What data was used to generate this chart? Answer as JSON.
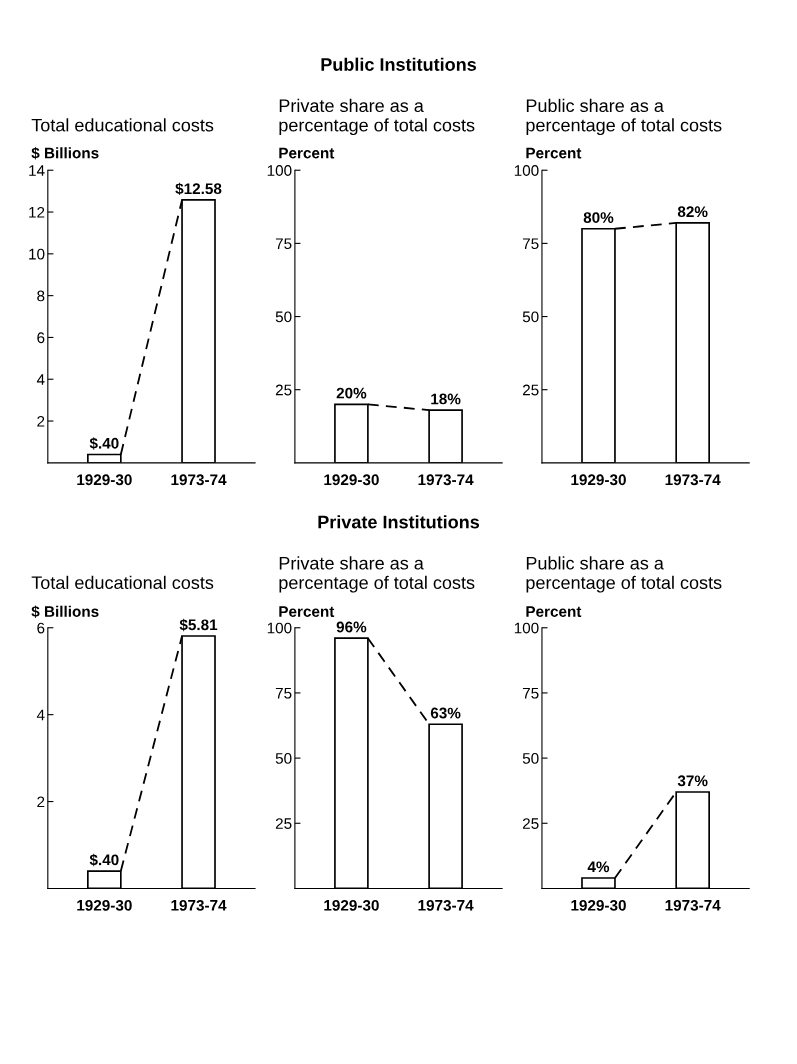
{
  "chart_data": [
    {
      "type": "bar",
      "title": "Total educational costs",
      "ylabel": "$ Billions",
      "annotations": [
        "Public Institutions"
      ],
      "categories": [
        "1929-30",
        "1973-74"
      ],
      "series": [
        {
          "color": "#ffffff",
          "values": [
            0.4,
            12.58
          ],
          "value_labels": [
            "$.40",
            "$12.58"
          ]
        }
      ],
      "ylim": [
        0,
        14
      ],
      "yticks": [
        2,
        4,
        6,
        8,
        10,
        12,
        14
      ],
      "grid": false,
      "legend": false,
      "line_style": "dashed"
    },
    {
      "type": "bar",
      "title": "Private share as a\npercentage of total costs",
      "ylabel": "Percent",
      "categories": [
        "1929-30",
        "1973-74"
      ],
      "series": [
        {
          "color": "#ffffff",
          "values": [
            20,
            18
          ],
          "value_labels": [
            "20%",
            "18%"
          ]
        }
      ],
      "ylim": [
        0,
        100
      ],
      "yticks": [
        25,
        50,
        75,
        100
      ],
      "grid": false,
      "legend": false,
      "line_style": "dashed"
    },
    {
      "type": "bar",
      "title": "Public share as a\npercentage of total costs",
      "ylabel": "Percent",
      "categories": [
        "1929-30",
        "1973-74"
      ],
      "series": [
        {
          "color": "#ffffff",
          "values": [
            80,
            82
          ],
          "value_labels": [
            "80%",
            "82%"
          ]
        }
      ],
      "ylim": [
        0,
        100
      ],
      "yticks": [
        25,
        50,
        75,
        100
      ],
      "grid": false,
      "legend": false,
      "line_style": "dashed"
    },
    {
      "type": "bar",
      "title": "Total educational costs",
      "ylabel": "$ Billions",
      "annotations": [
        "Private Institutions"
      ],
      "categories": [
        "1929-30",
        "1973-74"
      ],
      "series": [
        {
          "color": "#ffffff",
          "values": [
            0.4,
            5.81
          ],
          "value_labels": [
            "$.40",
            "$5.81"
          ]
        }
      ],
      "ylim": [
        0,
        6
      ],
      "yticks": [
        2,
        4,
        6
      ],
      "grid": false,
      "legend": false,
      "line_style": "dashed"
    },
    {
      "type": "bar",
      "title": "Private share as a\npercentage of total costs",
      "ylabel": "Percent",
      "categories": [
        "1929-30",
        "1973-74"
      ],
      "series": [
        {
          "color": "#ffffff",
          "values": [
            96,
            63
          ],
          "value_labels": [
            "96%",
            "63%"
          ]
        }
      ],
      "ylim": [
        0,
        100
      ],
      "yticks": [
        25,
        50,
        75,
        100
      ],
      "grid": false,
      "legend": false,
      "line_style": "dashed"
    },
    {
      "type": "bar",
      "title": "Public share as a\npercentage of total costs",
      "ylabel": "Percent",
      "categories": [
        "1929-30",
        "1973-74"
      ],
      "series": [
        {
          "color": "#ffffff",
          "values": [
            4,
            37
          ],
          "value_labels": [
            "4%",
            "37%"
          ]
        }
      ],
      "ylim": [
        0,
        100
      ],
      "yticks": [
        25,
        50,
        75,
        100
      ],
      "grid": false,
      "legend": false,
      "line_style": "dashed"
    }
  ]
}
